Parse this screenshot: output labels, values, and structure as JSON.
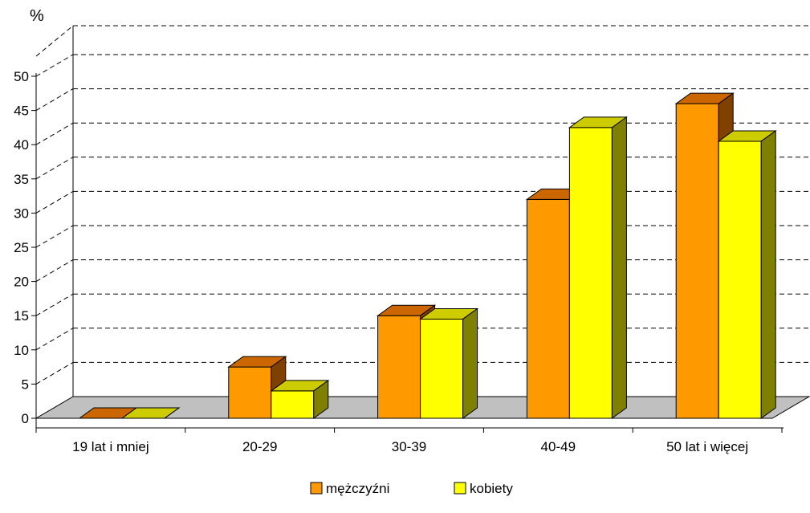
{
  "chart_data": {
    "type": "bar",
    "style": "3d-clustered-column",
    "ylabel": "%",
    "ylim": [
      0,
      50
    ],
    "yticks": [
      0,
      5,
      10,
      15,
      20,
      25,
      30,
      35,
      40,
      45,
      50
    ],
    "grid": true,
    "legend_position": "bottom-center",
    "categories": [
      "19 lat i mniej",
      "20-29",
      "30-39",
      "40-49",
      "50 lat i więcej"
    ],
    "series": [
      {
        "name": "mężczyźni",
        "values": [
          0,
          7.5,
          15,
          32,
          46
        ],
        "color": "#FF9900",
        "top_color": "#CC6600",
        "side_color": "#804000"
      },
      {
        "name": "kobiety",
        "values": [
          0,
          4,
          14.5,
          42.5,
          40.5
        ],
        "color": "#FFFF00",
        "top_color": "#CCCC00",
        "side_color": "#808000"
      }
    ],
    "floor_color": "#C0C0C0"
  }
}
